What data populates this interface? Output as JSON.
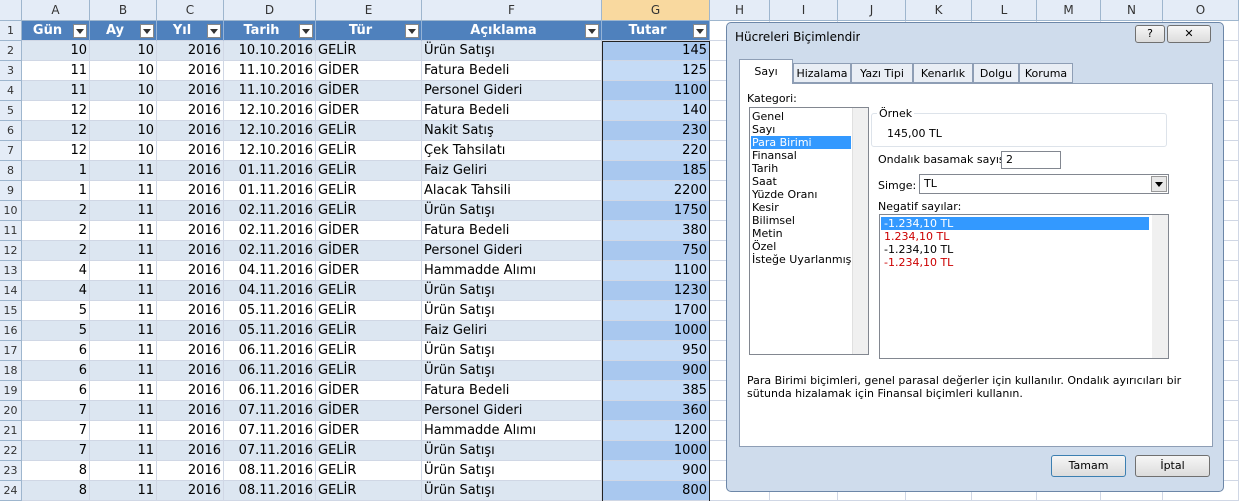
{
  "sheet": {
    "columns": [
      "A",
      "B",
      "C",
      "D",
      "E",
      "F",
      "G",
      "H",
      "I",
      "J",
      "K",
      "L",
      "M",
      "N",
      "O"
    ],
    "row_numbers": [
      1,
      2,
      3,
      4,
      5,
      6,
      7,
      8,
      9,
      10,
      11,
      12,
      13,
      14,
      15,
      16,
      17,
      18,
      19,
      20,
      21,
      22,
      23,
      24
    ],
    "header": [
      "Gün",
      "Ay",
      "Yıl",
      "Tarih",
      "Tür",
      "Açıklama",
      "Tutar"
    ],
    "rows": [
      [
        10,
        10,
        2016,
        "10.10.2016",
        "GELİR",
        "Ürün Satışı",
        145
      ],
      [
        11,
        10,
        2016,
        "11.10.2016",
        "GİDER",
        "Fatura Bedeli",
        125
      ],
      [
        11,
        10,
        2016,
        "11.10.2016",
        "GİDER",
        "Personel Gideri",
        1100
      ],
      [
        12,
        10,
        2016,
        "12.10.2016",
        "GİDER",
        "Fatura Bedeli",
        140
      ],
      [
        12,
        10,
        2016,
        "12.10.2016",
        "GELİR",
        "Nakit Satış",
        230
      ],
      [
        12,
        10,
        2016,
        "12.10.2016",
        "GELİR",
        "Çek Tahsilatı",
        220
      ],
      [
        1,
        11,
        2016,
        "01.11.2016",
        "GELİR",
        "Faiz Geliri",
        185
      ],
      [
        1,
        11,
        2016,
        "01.11.2016",
        "GELİR",
        "Alacak Tahsili",
        2200
      ],
      [
        2,
        11,
        2016,
        "02.11.2016",
        "GELİR",
        "Ürün Satışı",
        1750
      ],
      [
        2,
        11,
        2016,
        "02.11.2016",
        "GİDER",
        "Fatura Bedeli",
        380
      ],
      [
        2,
        11,
        2016,
        "02.11.2016",
        "GİDER",
        "Personel Gideri",
        750
      ],
      [
        4,
        11,
        2016,
        "04.11.2016",
        "GİDER",
        "Hammadde Alımı",
        1100
      ],
      [
        4,
        11,
        2016,
        "04.11.2016",
        "GELİR",
        "Ürün Satışı",
        1230
      ],
      [
        5,
        11,
        2016,
        "05.11.2016",
        "GELİR",
        "Ürün Satışı",
        1700
      ],
      [
        5,
        11,
        2016,
        "05.11.2016",
        "GELİR",
        "Faiz Geliri",
        1000
      ],
      [
        6,
        11,
        2016,
        "06.11.2016",
        "GELİR",
        "Ürün Satışı",
        950
      ],
      [
        6,
        11,
        2016,
        "06.11.2016",
        "GELİR",
        "Ürün Satışı",
        900
      ],
      [
        6,
        11,
        2016,
        "06.11.2016",
        "GİDER",
        "Fatura Bedeli",
        385
      ],
      [
        7,
        11,
        2016,
        "07.11.2016",
        "GİDER",
        "Personel Gideri",
        360
      ],
      [
        7,
        11,
        2016,
        "07.11.2016",
        "GİDER",
        "Hammadde Alımı",
        1200
      ],
      [
        7,
        11,
        2016,
        "07.11.2016",
        "GELİR",
        "Ürün Satışı",
        1000
      ],
      [
        8,
        11,
        2016,
        "08.11.2016",
        "GELİR",
        "Ürün Satışı",
        900
      ],
      [
        8,
        11,
        2016,
        "08.11.2016",
        "GELİR",
        "Ürün Satışı",
        800
      ]
    ]
  },
  "dialog": {
    "title": "Hücreleri Biçimlendir",
    "help": "?",
    "close": "✕",
    "tabs": [
      "Sayı",
      "Hizalama",
      "Yazı Tipi",
      "Kenarlık",
      "Dolgu",
      "Koruma"
    ],
    "category_label": "Kategori:",
    "categories": [
      "Genel",
      "Sayı",
      "Para Birimi",
      "Finansal",
      "Tarih",
      "Saat",
      "Yüzde Oranı",
      "Kesir",
      "Bilimsel",
      "Metin",
      "Özel",
      "İsteğe Uyarlanmış"
    ],
    "sample_label": "Örnek",
    "sample_value": "145,00 TL",
    "decimals_label": "Ondalık basamak sayısı:",
    "decimals_value": "2",
    "symbol_label": "Simge:",
    "symbol_value": "TL",
    "negative_label": "Negatif sayılar:",
    "negatives": [
      {
        "text": "-1.234,10 TL",
        "color": "#ffffff"
      },
      {
        "text": "1.234,10 TL",
        "color": "#cc0000"
      },
      {
        "text": "-1.234,10 TL",
        "color": "#000000"
      },
      {
        "text": "-1.234,10 TL",
        "color": "#cc0000"
      }
    ],
    "description": "Para Birimi biçimleri, genel parasal değerler için kullanılır. Ondalık ayırıcıları bir sütunda hizalamak için Finansal biçimleri kullanın.",
    "ok": "Tamam",
    "cancel": "İptal"
  }
}
